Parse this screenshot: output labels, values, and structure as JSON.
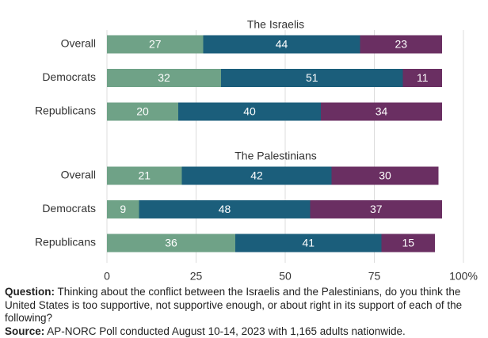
{
  "chart_data": [
    {
      "type": "bar",
      "orientation": "horizontal",
      "stacked": true,
      "title": "The Israelis",
      "categories": [
        "Overall",
        "Democrats",
        "Republicans"
      ],
      "series": [
        {
          "color": "#6fa287",
          "values": [
            27,
            32,
            20
          ]
        },
        {
          "color": "#1b5e7b",
          "values": [
            44,
            51,
            40
          ]
        },
        {
          "color": "#6a2f62",
          "values": [
            23,
            11,
            34
          ]
        }
      ]
    },
    {
      "type": "bar",
      "orientation": "horizontal",
      "stacked": true,
      "title": "The Palestinians",
      "categories": [
        "Overall",
        "Democrats",
        "Republicans"
      ],
      "series": [
        {
          "color": "#6fa287",
          "values": [
            21,
            9,
            36
          ]
        },
        {
          "color": "#1b5e7b",
          "values": [
            42,
            48,
            41
          ]
        },
        {
          "color": "#6a2f62",
          "values": [
            30,
            37,
            15
          ]
        }
      ],
      "xlim": [
        0,
        100
      ],
      "xticks": [
        0,
        25,
        50,
        75,
        {
          "value": 100,
          "label": "100%"
        }
      ],
      "grid": true
    }
  ],
  "notes": {
    "question_label": "Question:",
    "question": "Thinking about the conflict between the Israelis and the Palestinians, do you think the United States is too supportive, not supportive enough, or about right in its support of each of the following?",
    "source_label": "Source:",
    "source": "AP-NORC Poll conducted August 10-14, 2023 with 1,165 adults nationwide."
  }
}
